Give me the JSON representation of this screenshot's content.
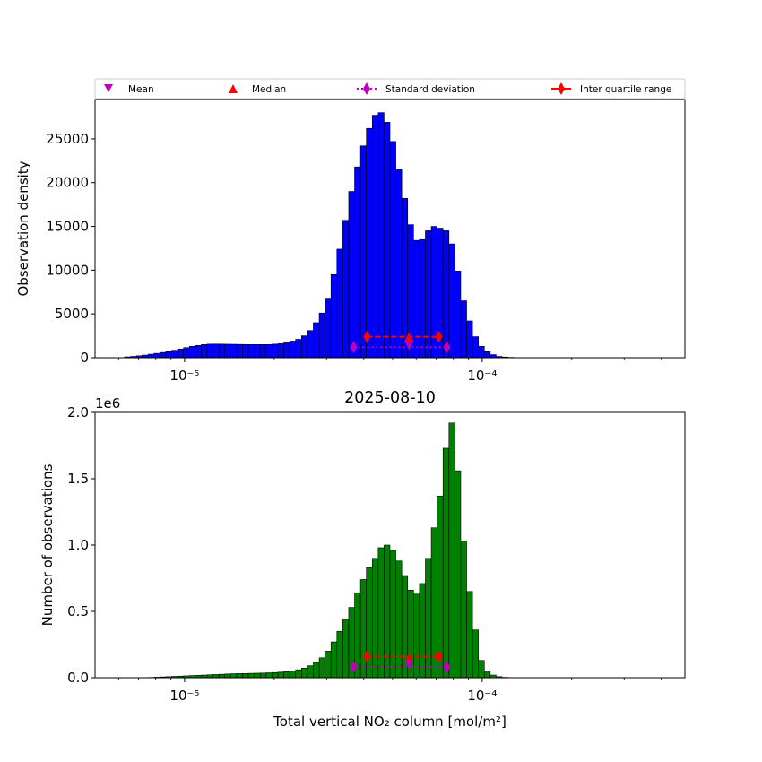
{
  "legend": {
    "placement": "top",
    "items": [
      {
        "label": "Mean",
        "marker": "triangle-down",
        "color": "#bf00bf"
      },
      {
        "label": "Median",
        "marker": "triangle-up",
        "color": "#ff0000"
      },
      {
        "label": "Standard deviation",
        "marker": "diamond-dotted-line",
        "color": "#bf00bf"
      },
      {
        "label": "Inter quartile range",
        "marker": "diamond-solid-line",
        "color": "#ff0000"
      }
    ]
  },
  "chart_data": [
    {
      "type": "bar",
      "title": "",
      "ylabel": "Observation density",
      "xlabel": "",
      "xscale": "log",
      "xlim": [
        5e-06,
        0.00048
      ],
      "ylim": [
        0,
        29500
      ],
      "yticks": [
        0,
        5000,
        10000,
        15000,
        20000,
        25000
      ],
      "xticks": [
        {
          "value": 1e-05,
          "label": "10⁻⁵"
        },
        {
          "value": 0.0001,
          "label": "10⁻⁴"
        }
      ],
      "bar_color": "#0000ff",
      "bin_edges_range": [
        5e-06,
        0.00048
      ],
      "bin_count": 100,
      "values": [
        0,
        0,
        0,
        0,
        0,
        100,
        150,
        220,
        300,
        400,
        500,
        600,
        700,
        850,
        1000,
        1150,
        1300,
        1400,
        1500,
        1550,
        1560,
        1550,
        1540,
        1530,
        1520,
        1510,
        1500,
        1500,
        1500,
        1500,
        1550,
        1600,
        1700,
        1900,
        2100,
        2500,
        3100,
        4000,
        5100,
        6800,
        9500,
        12400,
        15700,
        19000,
        21800,
        24200,
        26200,
        27700,
        28000,
        26900,
        24700,
        21500,
        18200,
        15200,
        13400,
        13500,
        14500,
        15000,
        14800,
        14500,
        13000,
        9900,
        6500,
        4200,
        2400,
        1300,
        700,
        350,
        150,
        80,
        40,
        20,
        0,
        0,
        0,
        0,
        0,
        0,
        0,
        0,
        0,
        0,
        0,
        0,
        0,
        0,
        0,
        0,
        0,
        0,
        0,
        0,
        0,
        0,
        0,
        0,
        0,
        0,
        0,
        0
      ],
      "stats": {
        "mean": {
          "x": 5.68e-05,
          "y": 1400
        },
        "median": {
          "x": 5.68e-05,
          "y": 2400
        },
        "std": {
          "x": [
            3.7e-05,
            7.6e-05
          ],
          "y": 1200
        },
        "iqr": {
          "x": [
            4.1e-05,
            7.15e-05
          ],
          "y": 2400
        }
      }
    },
    {
      "type": "bar",
      "title": "2025-08-10",
      "ylabel": "Number of observations",
      "xlabel": "Total vertical NO₂ column [mol/m²]",
      "xscale": "log",
      "xlim": [
        5e-06,
        0.00048
      ],
      "ylim": [
        0,
        2000000.0
      ],
      "yticks": [
        {
          "value": 0,
          "label": "0.0"
        },
        {
          "value": 500000,
          "label": "0.5"
        },
        {
          "value": 1000000,
          "label": "1.0"
        },
        {
          "value": 1500000,
          "label": "1.5"
        },
        {
          "value": 2000000,
          "label": "2.0"
        }
      ],
      "yoffset_label": "1e6",
      "xticks": [
        {
          "value": 1e-05,
          "label": "10⁻⁵"
        },
        {
          "value": 0.0001,
          "label": "10⁻⁴"
        }
      ],
      "bar_color": "#008000",
      "bin_edges_range": [
        5e-06,
        0.00048
      ],
      "bin_count": 100,
      "values": [
        0,
        0,
        0,
        0,
        0,
        0,
        0,
        0,
        0,
        2000,
        4000,
        6000,
        8000,
        10000,
        12000,
        14000,
        16000,
        18000,
        20000,
        22000,
        24000,
        26000,
        28000,
        30000,
        31000,
        32000,
        33000,
        34000,
        35000,
        37000,
        39000,
        42000,
        46000,
        52000,
        60000,
        72000,
        90000,
        115000,
        150000,
        200000,
        270000,
        350000,
        440000,
        530000,
        640000,
        740000,
        830000,
        900000,
        980000,
        1000000,
        960000,
        880000,
        770000,
        660000,
        630000,
        710000,
        900000,
        1130000,
        1370000,
        1730000,
        1920000,
        1560000,
        1030000,
        650000,
        360000,
        130000,
        50000,
        20000,
        8000,
        3000,
        1000,
        0,
        0,
        0,
        0,
        0,
        0,
        0,
        0,
        0,
        0,
        0,
        0,
        0,
        0,
        0,
        0,
        0,
        0,
        0,
        0,
        0,
        0,
        0,
        0,
        0,
        0,
        0,
        0,
        0
      ],
      "stats": {
        "mean": {
          "x": 5.68e-05,
          "y": 95000
        },
        "median": {
          "x": 5.68e-05,
          "y": 150000
        },
        "std": {
          "x": [
            3.7e-05,
            7.6e-05
          ],
          "y": 80000
        },
        "iqr": {
          "x": [
            4.1e-05,
            7.15e-05
          ],
          "y": 160000
        }
      }
    }
  ]
}
